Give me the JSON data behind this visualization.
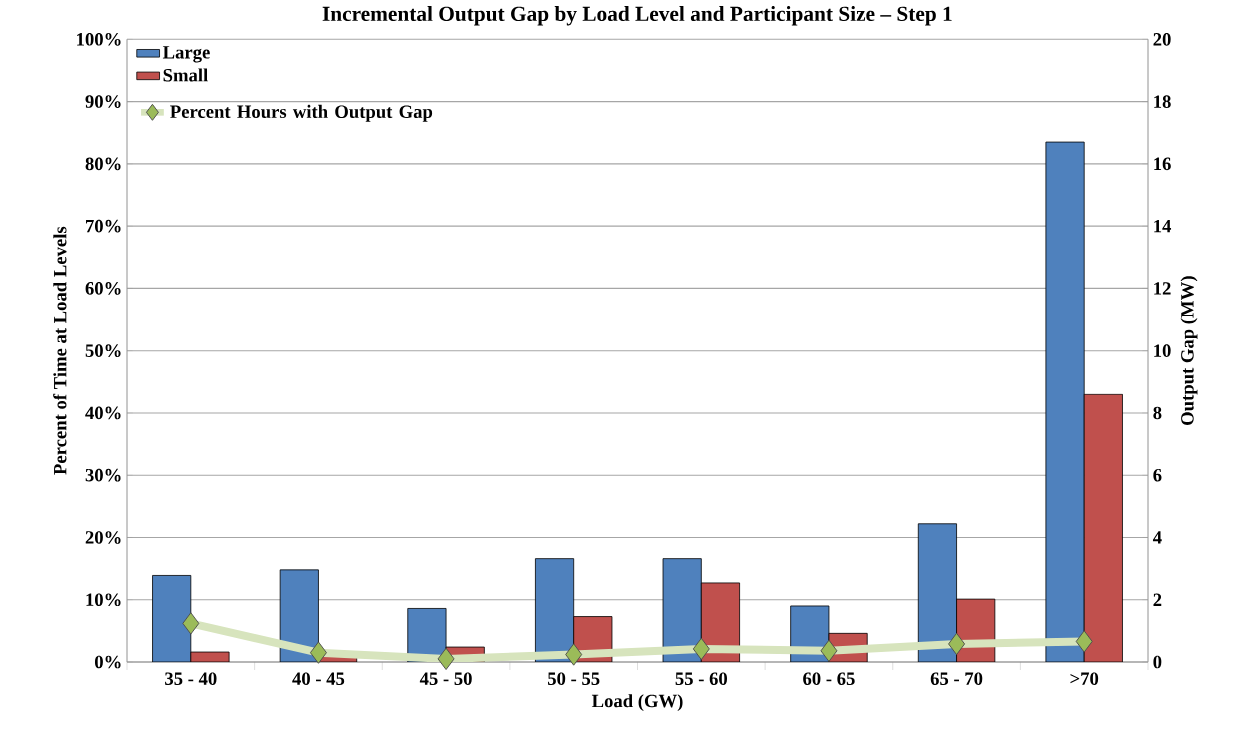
{
  "chart_data": {
    "type": "bar",
    "title": "Incremental Output Gap by Load Level and Participant Size – Step 1",
    "xlabel": "Load (GW)",
    "ylabel": "Percent of Time  at Load Levels",
    "y2label": "Output Gap (MW)",
    "categories": [
      "35 - 40",
      "40 - 45",
      "45 - 50",
      "50 - 55",
      "55 - 60",
      "60 - 65",
      "65 - 70",
      ">70"
    ],
    "series": [
      {
        "name": "Large",
        "color": "#4f81bd",
        "values": [
          13.9,
          14.8,
          8.6,
          16.6,
          16.6,
          9.0,
          22.2,
          83.5
        ]
      },
      {
        "name": "Small",
        "color": "#c0504d",
        "values": [
          1.6,
          0.9,
          2.4,
          7.3,
          12.7,
          4.6,
          10.1,
          43.0
        ]
      },
      {
        "name": "Percent Hours with Output Gap",
        "type": "line",
        "axis": "y2",
        "color": "#9bbb59",
        "marker": "diamond",
        "values": [
          1.24,
          0.3,
          0.1,
          0.24,
          0.42,
          0.36,
          0.58,
          0.66
        ]
      }
    ],
    "ylim": [
      0,
      100
    ],
    "yticks": [
      {
        "value": 0,
        "label": "0%"
      },
      {
        "value": 10,
        "label": "10%"
      },
      {
        "value": 20,
        "label": "20%"
      },
      {
        "value": 30,
        "label": "30%"
      },
      {
        "value": 40,
        "label": "40%"
      },
      {
        "value": 50,
        "label": "50%"
      },
      {
        "value": 60,
        "label": "60%"
      },
      {
        "value": 70,
        "label": "70%"
      },
      {
        "value": 80,
        "label": "80%"
      },
      {
        "value": 90,
        "label": "90%"
      },
      {
        "value": 100,
        "label": "100%"
      }
    ],
    "y2lim": [
      0,
      20
    ],
    "y2ticks": [
      0,
      2,
      4,
      6,
      8,
      10,
      12,
      14,
      16,
      18,
      20
    ],
    "grid": "y",
    "legend": "top left"
  }
}
